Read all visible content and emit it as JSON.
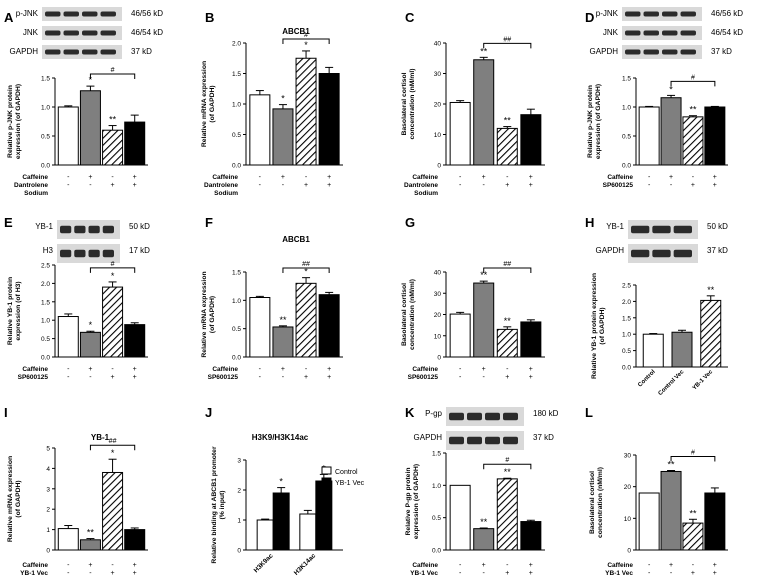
{
  "colors": {
    "white": "#ffffff",
    "gray": "#7f7f7f",
    "black": "#000000",
    "stroke": "#000000",
    "blot_bg": "#d9d9d9",
    "blot_band": "#2b2b2b"
  },
  "chart_data": [
    {
      "id": "A",
      "letter": "A",
      "type": "bar",
      "ylabel": "Relative p-JNK protein\nexpression (of GAPDH)",
      "ylim": [
        0,
        1.5
      ],
      "ticks": [
        "0.0",
        "0.5",
        "1.0",
        "1.5"
      ],
      "values": [
        1.0,
        1.28,
        0.6,
        0.74
      ],
      "errors": [
        0.02,
        0.08,
        0.08,
        0.12
      ],
      "fills": [
        "white",
        "gray",
        "hatch",
        "black"
      ],
      "sig": [
        "",
        "*",
        "**",
        ""
      ],
      "bracket": {
        "from": 1,
        "to": 3,
        "label": "#"
      },
      "blots": [
        {
          "label": "p-JNK",
          "size": "46/56 kD"
        },
        {
          "label": "JNK",
          "size": "46/54 kD"
        },
        {
          "label": "GAPDH",
          "size": "37 kD"
        }
      ],
      "table": {
        "rows": [
          {
            "label": "Caffeine",
            "signs": [
              "-",
              "+",
              "-",
              "+"
            ]
          },
          {
            "label": "Dantrolene",
            "signs": [
              "-",
              "-",
              "+",
              "+"
            ]
          },
          {
            "label": "Sodium",
            "signs": []
          }
        ]
      }
    },
    {
      "id": "B",
      "letter": "B",
      "type": "bar",
      "title": "ABCB1",
      "ylabel": "Relative mRNA expression\n(of GAPDH)",
      "ylim": [
        0,
        2.0
      ],
      "ticks": [
        "0.0",
        "0.5",
        "1.0",
        "1.5",
        "2.0"
      ],
      "values": [
        1.15,
        0.92,
        1.75,
        1.5
      ],
      "errors": [
        0.07,
        0.07,
        0.12,
        0.1
      ],
      "fills": [
        "white",
        "gray",
        "hatch",
        "black"
      ],
      "sig": [
        "",
        "*",
        "*",
        ""
      ],
      "bracket": {
        "from": 1,
        "to": 3,
        "label": "#"
      },
      "table": {
        "rows": [
          {
            "label": "Caffeine",
            "signs": [
              "-",
              "+",
              "-",
              "+"
            ]
          },
          {
            "label": "Dantrolene",
            "signs": [
              "-",
              "-",
              "+",
              "+"
            ]
          },
          {
            "label": "Sodium",
            "signs": []
          }
        ]
      }
    },
    {
      "id": "C",
      "letter": "C",
      "type": "bar",
      "ylabel": "Basolateral cortisol\nconcentration (nM/ml)",
      "ylim": [
        0,
        40
      ],
      "ticks": [
        "0",
        "10",
        "20",
        "30",
        "40"
      ],
      "values": [
        20.5,
        34.5,
        12,
        16.5
      ],
      "errors": [
        0.6,
        0.8,
        0.6,
        1.8
      ],
      "fills": [
        "white",
        "gray",
        "hatch",
        "black"
      ],
      "sig": [
        "",
        "**",
        "**",
        ""
      ],
      "bracket": {
        "from": 1,
        "to": 3,
        "label": "##"
      },
      "table": {
        "rows": [
          {
            "label": "Caffeine",
            "signs": [
              "-",
              "+",
              "-",
              "+"
            ]
          },
          {
            "label": "Dantrolene",
            "signs": [
              "-",
              "-",
              "+",
              "+"
            ]
          },
          {
            "label": "Sodium",
            "signs": []
          }
        ]
      }
    },
    {
      "id": "D",
      "letter": "D",
      "type": "bar",
      "ylabel": "Relative p-JNK protein\nexpression (of GAPDH)",
      "ylim": [
        0,
        1.5
      ],
      "ticks": [
        "0.0",
        "0.5",
        "1.0",
        "1.5"
      ],
      "values": [
        1.0,
        1.16,
        0.83,
        1.0
      ],
      "errors": [
        0.01,
        0.04,
        0.02,
        0.01
      ],
      "fills": [
        "white",
        "gray",
        "hatch",
        "black"
      ],
      "sig": [
        "",
        "*",
        "**",
        ""
      ],
      "bracket": {
        "from": 1,
        "to": 3,
        "label": "#"
      },
      "blots": [
        {
          "label": "p-JNK",
          "size": "46/56 kD"
        },
        {
          "label": "JNK",
          "size": "46/54 kD"
        },
        {
          "label": "GAPDH",
          "size": "37 kD"
        }
      ],
      "table": {
        "rows": [
          {
            "label": "Caffeine",
            "signs": [
              "-",
              "+",
              "-",
              "+"
            ]
          },
          {
            "label": "SP600125",
            "signs": [
              "-",
              "-",
              "+",
              "+"
            ]
          }
        ]
      }
    },
    {
      "id": "E",
      "letter": "E",
      "type": "bar",
      "ylabel": "Relative YB-1 protein\nexpression (of H3)",
      "ylim": [
        0,
        2.5
      ],
      "ticks": [
        "0.0",
        "0.5",
        "1.0",
        "1.5",
        "2.0",
        "2.5"
      ],
      "values": [
        1.1,
        0.67,
        1.9,
        0.88
      ],
      "errors": [
        0.07,
        0.03,
        0.14,
        0.05
      ],
      "fills": [
        "white",
        "gray",
        "hatch",
        "black"
      ],
      "sig": [
        "",
        "*",
        "*",
        ""
      ],
      "bracket": {
        "from": 1,
        "to": 3,
        "label": "#"
      },
      "blots": [
        {
          "label": "YB-1",
          "size": "50 kD"
        },
        {
          "label": "H3",
          "size": "17 kD"
        }
      ],
      "table": {
        "rows": [
          {
            "label": "Caffeine",
            "signs": [
              "-",
              "+",
              "-",
              "+"
            ]
          },
          {
            "label": "SP600125",
            "signs": [
              "-",
              "-",
              "+",
              "+"
            ]
          }
        ]
      }
    },
    {
      "id": "F",
      "letter": "F",
      "type": "bar",
      "title": "ABCB1",
      "ylabel": "Relative mRNA expression\n(of GAPDH)",
      "ylim": [
        0,
        1.5
      ],
      "ticks": [
        "0.0",
        "0.5",
        "1.0",
        "1.5"
      ],
      "values": [
        1.05,
        0.53,
        1.3,
        1.1
      ],
      "errors": [
        0.02,
        0.02,
        0.1,
        0.04
      ],
      "fills": [
        "white",
        "gray",
        "hatch",
        "black"
      ],
      "sig": [
        "",
        "**",
        "*",
        ""
      ],
      "bracket": {
        "from": 1,
        "to": 3,
        "label": "##"
      },
      "table": {
        "rows": [
          {
            "label": "Caffeine",
            "signs": [
              "-",
              "+",
              "-",
              "+"
            ]
          },
          {
            "label": "SP600125",
            "signs": [
              "-",
              "-",
              "+",
              "+"
            ]
          }
        ]
      }
    },
    {
      "id": "G",
      "letter": "G",
      "type": "bar",
      "ylabel": "Basolateral cortisol\nconcentration (nM/ml)",
      "ylim": [
        0,
        40
      ],
      "ticks": [
        "0",
        "10",
        "20",
        "30",
        "40"
      ],
      "values": [
        20.2,
        34.8,
        13,
        16.5
      ],
      "errors": [
        0.8,
        0.9,
        1.2,
        1.0
      ],
      "fills": [
        "white",
        "gray",
        "hatch",
        "black"
      ],
      "sig": [
        "",
        "**",
        "**",
        ""
      ],
      "bracket": {
        "from": 1,
        "to": 3,
        "label": "##"
      },
      "table": {
        "rows": [
          {
            "label": "Caffeine",
            "signs": [
              "-",
              "+",
              "-",
              "+"
            ]
          },
          {
            "label": "SP600125",
            "signs": [
              "-",
              "-",
              "+",
              "+"
            ]
          }
        ]
      }
    },
    {
      "id": "H",
      "letter": "H",
      "type": "bar",
      "ylabel": "Relative YB-1 protein expression\n(of GAPDH)",
      "ylim": [
        0,
        2.5
      ],
      "ticks": [
        "0.0",
        "0.5",
        "1.0",
        "1.5",
        "2.0",
        "2.5"
      ],
      "values": [
        1.0,
        1.06,
        2.03
      ],
      "errors": [
        0.02,
        0.06,
        0.14
      ],
      "fills": [
        "white",
        "gray",
        "hatch"
      ],
      "sig": [
        "",
        "",
        "**"
      ],
      "categories": [
        "Control",
        "Control Vec",
        "YB-1 Vec"
      ],
      "blots": [
        {
          "label": "YB-1",
          "size": "50 kD"
        },
        {
          "label": "GAPDH",
          "size": "37 kD"
        }
      ]
    },
    {
      "id": "I",
      "letter": "I",
      "type": "bar",
      "title": "YB-1",
      "ylabel": "Relative mRNA expression\n(of GAPDH)",
      "ylim": [
        0,
        5
      ],
      "ticks": [
        "0",
        "1",
        "2",
        "3",
        "4",
        "5"
      ],
      "values": [
        1.05,
        0.5,
        3.8,
        1.0
      ],
      "errors": [
        0.15,
        0.06,
        0.65,
        0.08
      ],
      "fills": [
        "white",
        "gray",
        "hatch",
        "black"
      ],
      "sig": [
        "",
        "**",
        "*",
        ""
      ],
      "bracket": {
        "from": 1,
        "to": 3,
        "label": "##"
      },
      "table": {
        "rows": [
          {
            "label": "Caffeine",
            "signs": [
              "-",
              "+",
              "-",
              "+"
            ]
          },
          {
            "label": "YB-1 Vec",
            "signs": [
              "-",
              "-",
              "+",
              "+"
            ]
          }
        ]
      }
    },
    {
      "id": "J",
      "letter": "J",
      "type": "grouped-bar",
      "title": "H3K9/H3K14ac",
      "ylabel": "Relative binding at ABCB1 promoter\n(% input)",
      "ylim": [
        0,
        3
      ],
      "ticks": [
        "0",
        "1",
        "2",
        "3"
      ],
      "categories": [
        "H3K9ac",
        "H3K14ac"
      ],
      "series": [
        {
          "name": "Control",
          "values": [
            1.0,
            1.2
          ],
          "errors": [
            0.03,
            0.12
          ],
          "fill": "white"
        },
        {
          "name": "YB-1 Vec",
          "values": [
            1.9,
            2.3
          ],
          "errors": [
            0.18,
            0.22
          ],
          "fill": "black"
        }
      ],
      "sig": [
        [
          "",
          "*"
        ],
        [
          "",
          "*"
        ]
      ]
    },
    {
      "id": "K",
      "letter": "K",
      "type": "bar",
      "ylabel": "Relative P-gp protein\nexpression (of GAPDH)",
      "ylim": [
        0,
        1.5
      ],
      "ticks": [
        "0.0",
        "0.5",
        "1.0",
        "1.5"
      ],
      "values": [
        1.0,
        0.33,
        1.1,
        0.44
      ],
      "errors": [
        0.0,
        0.01,
        0.01,
        0.02
      ],
      "fills": [
        "white",
        "gray",
        "hatch",
        "black"
      ],
      "sig": [
        "",
        "**",
        "**",
        ""
      ],
      "bracket": {
        "from": 1,
        "to": 3,
        "label": "#"
      },
      "blots": [
        {
          "label": "P-gp",
          "size": "180 kD"
        },
        {
          "label": "GAPDH",
          "size": "37 kD"
        }
      ],
      "table": {
        "rows": [
          {
            "label": "Caffeine",
            "signs": [
              "-",
              "+",
              "-",
              "+"
            ]
          },
          {
            "label": "YB-1 Vec",
            "signs": [
              "-",
              "-",
              "+",
              "+"
            ]
          }
        ]
      }
    },
    {
      "id": "L",
      "letter": "L",
      "type": "bar",
      "ylabel": "Basolateral cortisol\nconcentration (nM/ml)",
      "ylim": [
        0,
        30
      ],
      "ticks": [
        "0",
        "10",
        "20",
        "30"
      ],
      "values": [
        18,
        24.8,
        8.5,
        18
      ],
      "errors": [
        0.0,
        0.3,
        1.2,
        1.6
      ],
      "fills": [
        "white",
        "gray",
        "hatch",
        "black"
      ],
      "sig": [
        "",
        "**",
        "**",
        ""
      ],
      "bracket": {
        "from": 1,
        "to": 3,
        "label": "#"
      },
      "table": {
        "rows": [
          {
            "label": "Caffeine",
            "signs": [
              "-",
              "+",
              "-",
              "+"
            ]
          },
          {
            "label": "YB-1 Vec",
            "signs": [
              "-",
              "-",
              "+",
              "+"
            ]
          }
        ]
      }
    }
  ]
}
